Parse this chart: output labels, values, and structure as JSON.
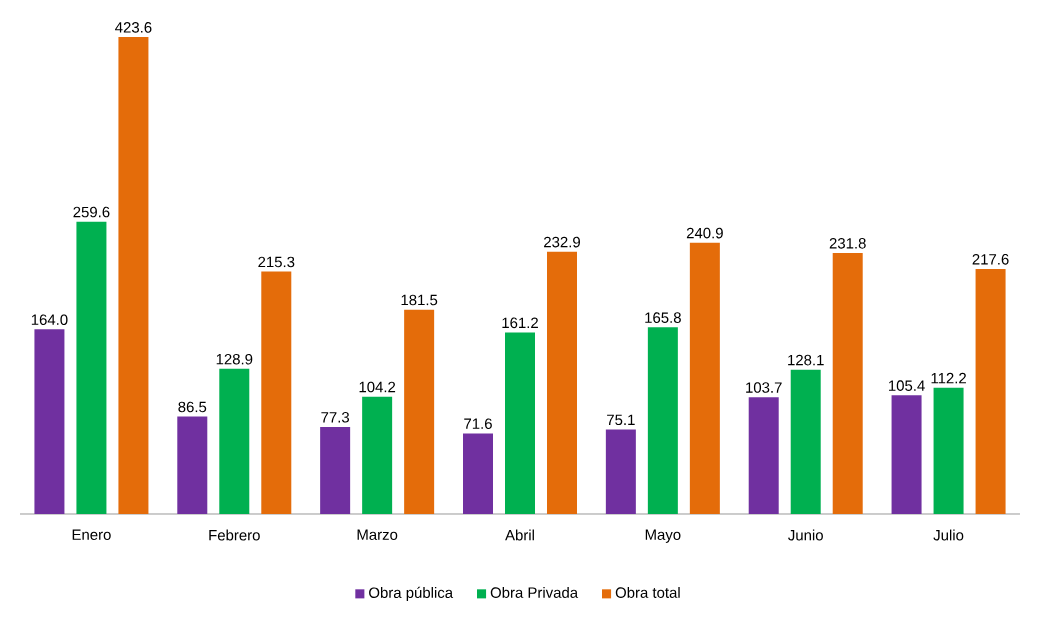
{
  "chart_data": {
    "type": "bar",
    "categories": [
      "Enero",
      "Febrero",
      "Marzo",
      "Abril",
      "Mayo",
      "Junio",
      "Julio"
    ],
    "series": [
      {
        "name": "Obra pública",
        "color": "#7030a0",
        "values": [
          164.0,
          86.5,
          77.3,
          71.6,
          75.1,
          103.7,
          105.4
        ],
        "value_labels": [
          "164.0",
          "86.5",
          "77.3",
          "71.6",
          "75.1",
          "103.7",
          "105.4"
        ]
      },
      {
        "name": "Obra Privada",
        "color": "#00b050",
        "values": [
          259.6,
          128.9,
          104.2,
          161.2,
          165.8,
          128.1,
          112.2
        ],
        "value_labels": [
          "259.6",
          "128.9",
          "104.2",
          "161.2",
          "165.8",
          "128.1",
          "112.2"
        ]
      },
      {
        "name": "Obra total",
        "color": "#e46c0a",
        "values": [
          423.6,
          215.3,
          181.5,
          232.9,
          240.9,
          231.8,
          217.6
        ],
        "value_labels": [
          "423.6",
          "215.3",
          "181.5",
          "232.9",
          "240.9",
          "231.8",
          "217.6"
        ]
      }
    ],
    "legend": "bottom"
  }
}
